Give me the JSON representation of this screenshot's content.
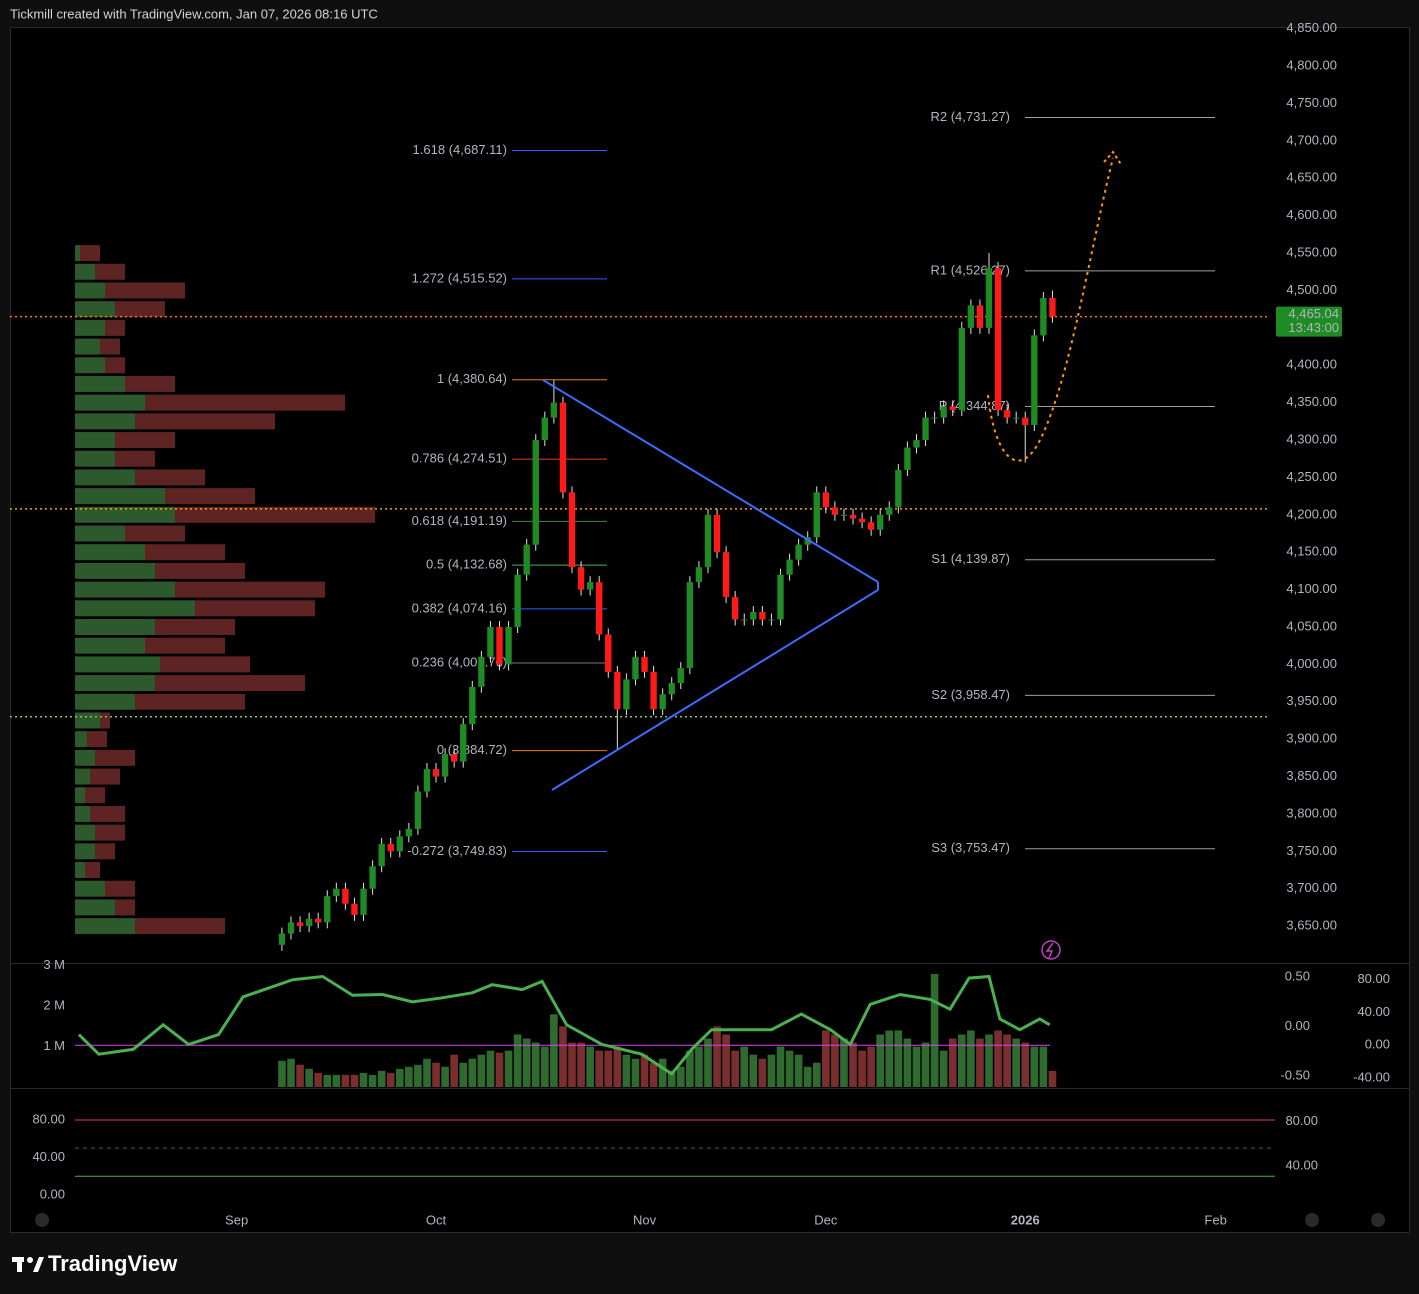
{
  "header": "Tickmill created with TradingView.com, Jan 07, 2026 08:16 UTC",
  "logo": "TradingView",
  "chart_data": [
    {
      "type": "candlestick",
      "up_color": "#1f8b24",
      "down_color": "#ff1a1a",
      "open": [
        3625,
        3640,
        3655,
        3650,
        3660,
        3655,
        3690,
        3700,
        3680,
        3665,
        3700,
        3730,
        3760,
        3750,
        3770,
        3780,
        3830,
        3860,
        3850,
        3880,
        3870,
        3920,
        3970,
        4010,
        4050,
        4000,
        4050,
        4120,
        4160,
        4300,
        4330,
        4350,
        4230,
        4130,
        4100,
        4110,
        4040,
        3990,
        3940,
        3980,
        4010,
        3990,
        3940,
        3960,
        3975,
        3995,
        4110,
        4130,
        4200,
        4150,
        4090,
        4060,
        4060,
        4070,
        4060,
        4060,
        4120,
        4140,
        4160,
        4170,
        4230,
        4210,
        4200,
        4200,
        4195,
        4190,
        4180,
        4200,
        4210,
        4260,
        4290,
        4300,
        4330,
        4330,
        4345,
        4340,
        4450,
        4480,
        4450,
        4530,
        4340,
        4330,
        4330,
        4320,
        4440,
        4490
      ],
      "high": [
        3648,
        3663,
        3663,
        3668,
        3668,
        3698,
        3708,
        3708,
        3688,
        3708,
        3738,
        3768,
        3768,
        3778,
        3788,
        3838,
        3868,
        3868,
        3888,
        3888,
        3928,
        3978,
        4018,
        4058,
        4058,
        4058,
        4128,
        4168,
        4308,
        4338,
        4380,
        4358,
        4238,
        4138,
        4118,
        4118,
        4048,
        3998,
        3988,
        4018,
        4018,
        3998,
        3968,
        3983,
        4003,
        4118,
        4138,
        4208,
        4208,
        4158,
        4098,
        4068,
        4078,
        4078,
        4068,
        4128,
        4148,
        4168,
        4178,
        4238,
        4238,
        4218,
        4208,
        4208,
        4203,
        4198,
        4208,
        4218,
        4268,
        4298,
        4308,
        4338,
        4338,
        4353,
        4353,
        4458,
        4488,
        4488,
        4550,
        4538,
        4348,
        4338,
        4338,
        4448,
        4498,
        4500
      ],
      "low": [
        3617,
        3632,
        3642,
        3642,
        3647,
        3647,
        3682,
        3672,
        3657,
        3657,
        3692,
        3722,
        3742,
        3742,
        3762,
        3772,
        3822,
        3842,
        3842,
        3862,
        3862,
        3912,
        3962,
        4002,
        3992,
        3992,
        4042,
        4112,
        4152,
        4292,
        4322,
        4222,
        4122,
        4092,
        4092,
        4032,
        3982,
        3885,
        3932,
        3972,
        3982,
        3932,
        3932,
        3952,
        3967,
        3987,
        4102,
        4122,
        4142,
        4082,
        4052,
        4052,
        4052,
        4052,
        4052,
        4052,
        4112,
        4132,
        4152,
        4162,
        4202,
        4192,
        4192,
        4187,
        4182,
        4172,
        4172,
        4192,
        4202,
        4252,
        4282,
        4292,
        4322,
        4322,
        4332,
        4332,
        4442,
        4442,
        4442,
        4332,
        4322,
        4322,
        4270,
        4312,
        4432,
        4457
      ],
      "close": [
        3640,
        3655,
        3650,
        3660,
        3655,
        3690,
        3700,
        3680,
        3665,
        3700,
        3730,
        3760,
        3750,
        3770,
        3780,
        3830,
        3860,
        3850,
        3880,
        3870,
        3920,
        3970,
        4010,
        4050,
        4000,
        4050,
        4120,
        4160,
        4300,
        4330,
        4350,
        4230,
        4130,
        4100,
        4110,
        4040,
        3990,
        3940,
        3980,
        4010,
        3990,
        3940,
        3960,
        3975,
        3995,
        4110,
        4130,
        4200,
        4150,
        4090,
        4060,
        4060,
        4070,
        4060,
        4060,
        4120,
        4140,
        4160,
        4170,
        4230,
        4210,
        4200,
        4200,
        4195,
        4190,
        4180,
        4200,
        4210,
        4260,
        4290,
        4300,
        4330,
        4330,
        4345,
        4340,
        4450,
        4480,
        4450,
        4530,
        4340,
        4330,
        4330,
        4320,
        4440,
        4490,
        4465
      ],
      "xlim": [
        -30,
        109
      ],
      "xticks": [
        {
          "value": -5,
          "label": "Sep"
        },
        {
          "value": 17,
          "label": "Oct"
        },
        {
          "value": 40,
          "label": "Nov"
        },
        {
          "value": 60,
          "label": "Dec"
        },
        {
          "value": 82,
          "label": "2026"
        },
        {
          "value": 103,
          "label": "Feb"
        }
      ],
      "ylim": [
        3602,
        4851
      ],
      "yticks": [
        {
          "value": 3650,
          "label": "3,650.00"
        },
        {
          "value": 3700,
          "label": "3,700.00"
        },
        {
          "value": 3750,
          "label": "3,750.00"
        },
        {
          "value": 3800,
          "label": "3,800.00"
        },
        {
          "value": 3850,
          "label": "3,850.00"
        },
        {
          "value": 3900,
          "label": "3,900.00"
        },
        {
          "value": 3950,
          "label": "3,950.00"
        },
        {
          "value": 4000,
          "label": "4,000.00"
        },
        {
          "value": 4050,
          "label": "4,050.00"
        },
        {
          "value": 4100,
          "label": "4,100.00"
        },
        {
          "value": 4150,
          "label": "4,150.00"
        },
        {
          "value": 4200,
          "label": "4,200.00"
        },
        {
          "value": 4250,
          "label": "4,250.00"
        },
        {
          "value": 4300,
          "label": "4,300.00"
        },
        {
          "value": 4350,
          "label": "4,350.00"
        },
        {
          "value": 4400,
          "label": "4,400.00"
        },
        {
          "value": 4450,
          "label": "4,450.00"
        },
        {
          "value": 4500,
          "label": "4,500.00"
        },
        {
          "value": 4550,
          "label": "4,550.00"
        },
        {
          "value": 4600,
          "label": "4,600.00"
        },
        {
          "value": 4650,
          "label": "4,650.00"
        },
        {
          "value": 4700,
          "label": "4,700.00"
        },
        {
          "value": 4750,
          "label": "4,750.00"
        },
        {
          "value": 4800,
          "label": "4,800.00"
        },
        {
          "value": 4850,
          "label": "4,850.00"
        }
      ],
      "last_price": {
        "value": 4465.04,
        "label": "4,465.04",
        "color": "#1f8b24"
      },
      "countdown": "13:43:00",
      "fib_levels": [
        {
          "value": 4687.11,
          "label": "1.618 (4,687.11)",
          "color": "#2962ff"
        },
        {
          "value": 4515.52,
          "label": "1.272 (4,515.52)",
          "color": "#2962ff"
        },
        {
          "value": 4380.64,
          "label": "1 (4,380.64)",
          "color": "#f57c00"
        },
        {
          "value": 4274.51,
          "label": "0.786 (4,274.51)",
          "color": "#e53935"
        },
        {
          "value": 4191.19,
          "label": "0.618 (4,191.19)",
          "color": "#388e3c"
        },
        {
          "value": 4132.68,
          "label": "0.5 (4,132.68)",
          "color": "#4caf50"
        },
        {
          "value": 4074.16,
          "label": "0.382 (4,074.16)",
          "color": "#2962ff"
        },
        {
          "value": 4001.76,
          "label": "0.236 (4,001.76)",
          "color": "#787b86"
        },
        {
          "value": 3884.72,
          "label": "0 (3,884.72)",
          "color": "#f57c00"
        },
        {
          "value": 3749.83,
          "label": "-0.272 (3,749.83)",
          "color": "#2962ff"
        }
      ],
      "pivots": [
        {
          "value": 4731.27,
          "label": "R2 (4,731.27)"
        },
        {
          "value": 4526.27,
          "label": "R1 (4,526.27)"
        },
        {
          "value": 4344.87,
          "label": "P (4,344.87)"
        },
        {
          "value": 4139.87,
          "label": "S1 (4,139.87)"
        },
        {
          "value": 3958.47,
          "label": "S2 (3,958.47)"
        },
        {
          "value": 3753.47,
          "label": "S3 (3,753.47)"
        }
      ],
      "price_lines": [
        {
          "value": 4465.04,
          "color": "#f57c00"
        },
        {
          "value": 4208,
          "color": "#ffa000"
        },
        {
          "value": 3930,
          "color": "#8bc34a"
        }
      ],
      "volume_profile": {
        "prices": [
          3650,
          3675,
          3700,
          3725,
          3750,
          3775,
          3800,
          3825,
          3850,
          3875,
          3900,
          3925,
          3950,
          3975,
          4000,
          4025,
          4050,
          4075,
          4100,
          4125,
          4150,
          4175,
          4200,
          4225,
          4250,
          4275,
          4300,
          4325,
          4350,
          4375,
          4400,
          4425,
          4450,
          4475,
          4500,
          4525,
          4550
        ],
        "up": [
          60,
          40,
          30,
          10,
          20,
          20,
          15,
          10,
          15,
          20,
          12,
          25,
          60,
          80,
          85,
          70,
          80,
          120,
          100,
          80,
          70,
          50,
          100,
          90,
          60,
          40,
          40,
          60,
          70,
          50,
          30,
          25,
          30,
          40,
          30,
          20,
          5
        ],
        "down": [
          90,
          20,
          30,
          15,
          20,
          30,
          35,
          20,
          30,
          40,
          20,
          10,
          110,
          150,
          90,
          80,
          80,
          120,
          150,
          90,
          80,
          60,
          200,
          90,
          70,
          40,
          60,
          140,
          200,
          50,
          20,
          20,
          20,
          50,
          80,
          30,
          20
        ],
        "up_color": "#2d5a2d",
        "down_color": "#5e2424"
      }
    },
    {
      "type": "bar",
      "values": [
        0.65,
        0.7,
        0.55,
        0.45,
        0.35,
        0.3,
        0.3,
        0.3,
        0.3,
        0.35,
        0.3,
        0.4,
        0.35,
        0.45,
        0.5,
        0.55,
        0.7,
        0.6,
        0.5,
        0.8,
        0.6,
        0.7,
        0.8,
        0.9,
        0.85,
        0.9,
        1.3,
        1.2,
        1.1,
        1.0,
        1.8,
        1.5,
        1.1,
        1.1,
        1.0,
        0.9,
        0.9,
        1.0,
        0.8,
        0.7,
        0.8,
        0.6,
        0.7,
        0.4,
        0.5,
        0.9,
        1.0,
        1.2,
        1.5,
        1.3,
        0.9,
        1.0,
        0.8,
        0.7,
        0.8,
        1.0,
        0.9,
        0.8,
        0.5,
        0.6,
        1.4,
        1.3,
        1.2,
        1.1,
        0.9,
        1.0,
        1.3,
        1.4,
        1.4,
        1.2,
        1.0,
        1.1,
        2.8,
        0.9,
        1.2,
        1.3,
        1.4,
        1.2,
        1.3,
        1.4,
        1.3,
        1.2,
        1.1,
        1.0,
        1.0,
        0.4
      ],
      "up_color": "#2f6b2f",
      "down_color": "#7a2e2e",
      "ylim": [
        0,
        3.02
      ],
      "yticks": [
        {
          "value": 1,
          "label": "1 M"
        },
        {
          "value": 2,
          "label": "2 M"
        },
        {
          "value": 3,
          "label": "3 M"
        }
      ],
      "y2lim": [
        -0.61,
        0.62
      ],
      "y2ticks": [
        {
          "value": 0.5,
          "label": "0.50"
        },
        {
          "value": 0,
          "label": "0.00"
        },
        {
          "value": -0.5,
          "label": "-0.50"
        }
      ],
      "y3lim": [
        -51,
        98
      ],
      "y3ticks": [
        {
          "value": 80,
          "label": "80.00"
        },
        {
          "value": 40,
          "label": "40.00"
        },
        {
          "value": 0,
          "label": "0.00"
        },
        {
          "value": -40,
          "label": "-40.00"
        }
      ],
      "series": [
        {
          "color": "#4caf50",
          "axis": "y3",
          "x": [
            -22.4,
            -20.2,
            -16.4,
            -13.1,
            -10.3,
            -7,
            -4.3,
            1.2,
            4.5,
            7.8,
            11.1,
            14.4,
            17.7,
            21,
            23.2,
            26.5,
            28.7,
            31.4,
            35.3,
            39.7,
            43,
            45.2,
            47.4,
            50.7,
            54,
            57.3,
            60.5,
            62.7,
            64.9,
            68.2,
            71.5,
            73.7,
            75.8,
            78,
            79.2,
            81.4,
            83.6,
            84.7
          ],
          "values": [
            13,
            -11,
            -5,
            25,
            1,
            13,
            59,
            80,
            84,
            61,
            62,
            53,
            58,
            64,
            74,
            68,
            78,
            25,
            1,
            -11,
            -35,
            -5,
            19,
            19,
            19,
            38,
            19,
            1,
            50,
            62,
            56,
            44,
            82,
            84,
            32,
            19,
            32,
            25
          ]
        }
      ],
      "levels": [
        {
          "value": 0,
          "axis": "y3",
          "color": "#e040fb"
        }
      ]
    },
    {
      "type": "line",
      "ylim": [
        -16,
        112
      ],
      "yticks": [
        {
          "value": 80,
          "label": "80.00"
        },
        {
          "value": 40,
          "label": "40.00"
        },
        {
          "value": 0,
          "label": "0.00"
        }
      ],
      "y2lim": [
        1,
        108
      ],
      "y2ticks": [
        {
          "value": 80,
          "label": "80.00"
        },
        {
          "value": 40,
          "label": "40.00"
        }
      ],
      "levels": [
        {
          "value": 80,
          "color": "#f23645"
        },
        {
          "value": 50,
          "color": "#555555"
        },
        {
          "value": 20,
          "color": "#4caf50"
        }
      ]
    }
  ]
}
